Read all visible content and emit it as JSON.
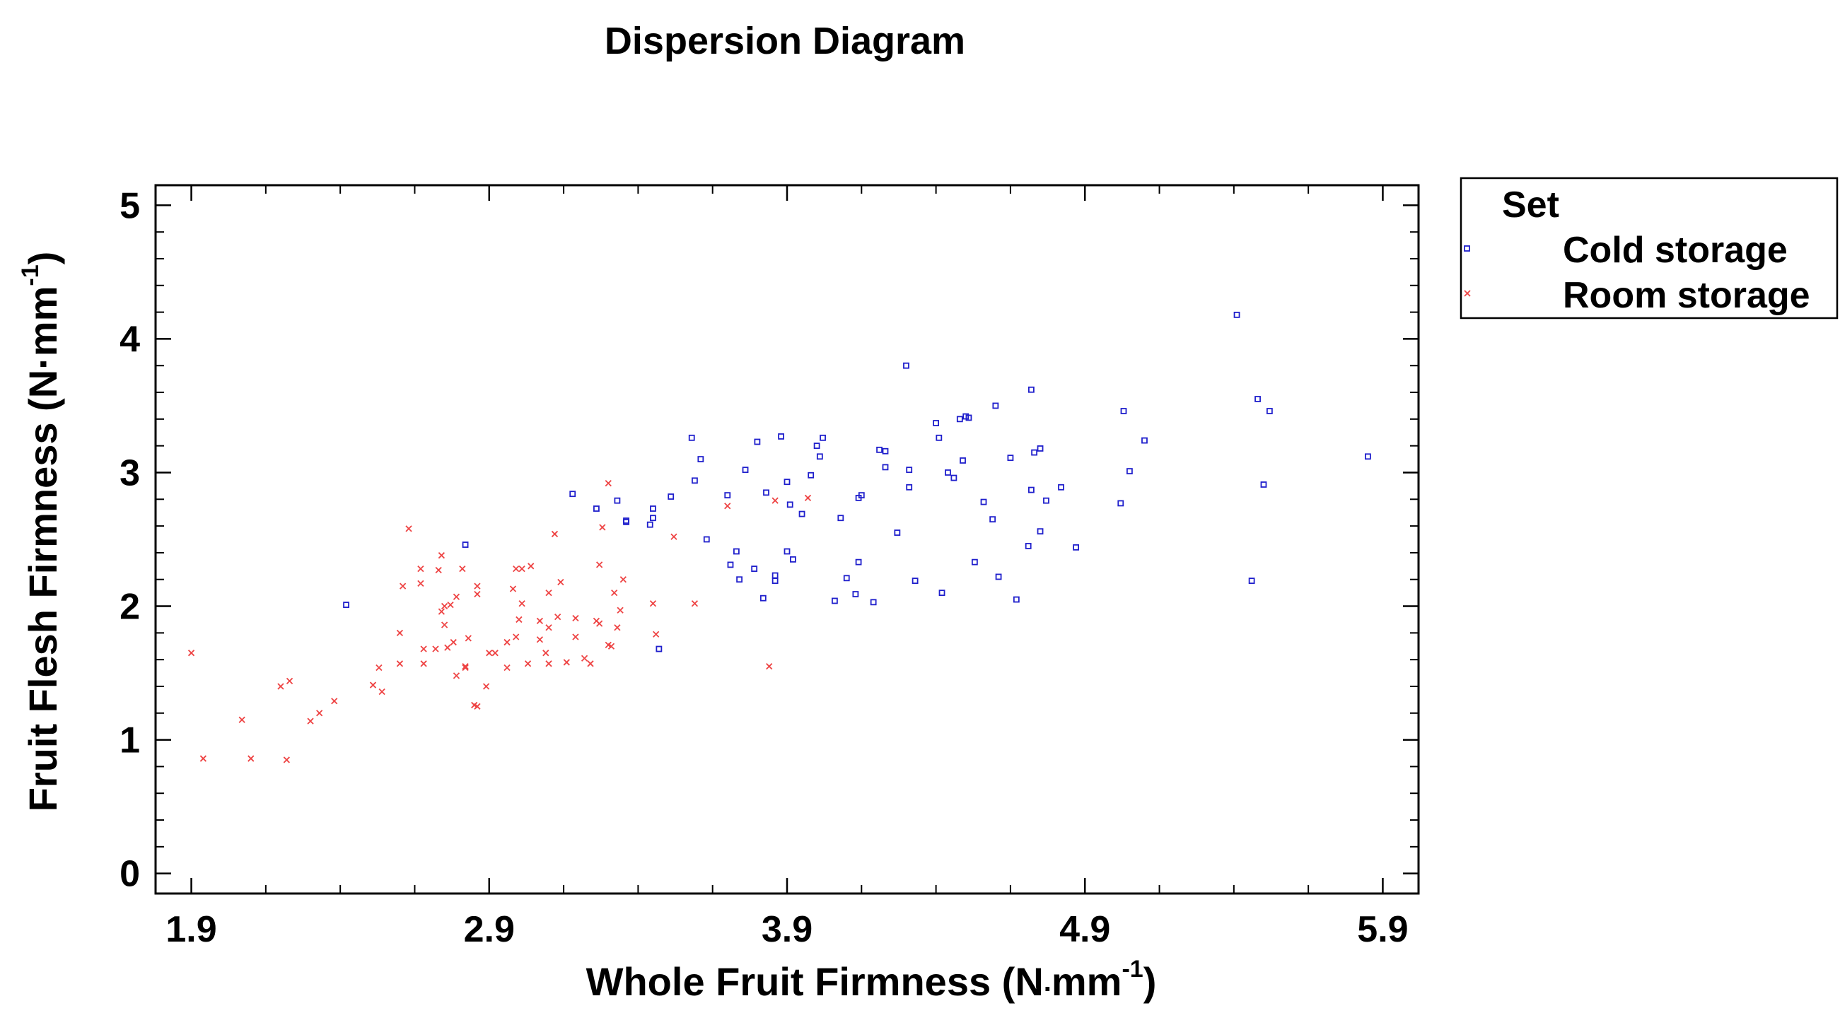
{
  "chart_data": {
    "type": "scatter",
    "title": "Dispersion Diagram",
    "xlabel": "Whole Fruit Firmness (N",
    "xlabel_dot": ".",
    "xlabel_unit": "mm",
    "xlabel_exp": "-1",
    "xlabel_close": ")",
    "ylabel": "Fruit Flesh Firmness (N·mm",
    "ylabel_exp": "-1",
    "ylabel_close": ")",
    "xlim": [
      1.78,
      6.02
    ],
    "ylim": [
      -0.15,
      5.15
    ],
    "x_ticks": [
      "1.9",
      "2.9",
      "3.9",
      "4.9",
      "5.9"
    ],
    "y_ticks": [
      "0",
      "1",
      "2",
      "3",
      "4",
      "5"
    ],
    "grid": false,
    "legend": {
      "title": "Set",
      "placement": "right"
    },
    "series": [
      {
        "name": "Cold storage",
        "marker": "square",
        "color": "#1f1fcc",
        "points": [
          [
            2.42,
            2.01
          ],
          [
            2.82,
            2.46
          ],
          [
            3.18,
            2.84
          ],
          [
            3.26,
            2.73
          ],
          [
            3.33,
            2.79
          ],
          [
            3.36,
            2.64
          ],
          [
            3.45,
            2.66
          ],
          [
            3.45,
            2.73
          ],
          [
            3.44,
            2.61
          ],
          [
            3.36,
            2.63
          ],
          [
            3.47,
            1.68
          ],
          [
            3.51,
            2.82
          ],
          [
            3.58,
            3.26
          ],
          [
            3.59,
            2.94
          ],
          [
            3.61,
            3.1
          ],
          [
            3.63,
            2.5
          ],
          [
            3.7,
            2.83
          ],
          [
            3.71,
            2.31
          ],
          [
            3.73,
            2.41
          ],
          [
            3.74,
            2.2
          ],
          [
            3.76,
            3.02
          ],
          [
            3.79,
            2.28
          ],
          [
            3.8,
            3.23
          ],
          [
            3.82,
            2.06
          ],
          [
            3.83,
            2.85
          ],
          [
            3.88,
            3.27
          ],
          [
            3.86,
            2.19
          ],
          [
            3.86,
            2.23
          ],
          [
            3.9,
            2.41
          ],
          [
            3.9,
            2.93
          ],
          [
            3.92,
            2.35
          ],
          [
            3.91,
            2.76
          ],
          [
            3.95,
            2.69
          ],
          [
            3.98,
            2.98
          ],
          [
            4.0,
            3.2
          ],
          [
            4.01,
            3.12
          ],
          [
            4.02,
            3.26
          ],
          [
            4.06,
            2.04
          ],
          [
            4.08,
            2.66
          ],
          [
            4.1,
            2.21
          ],
          [
            4.13,
            2.09
          ],
          [
            4.14,
            2.33
          ],
          [
            4.14,
            2.81
          ],
          [
            4.15,
            2.83
          ],
          [
            4.19,
            2.03
          ],
          [
            4.21,
            3.17
          ],
          [
            4.23,
            3.16
          ],
          [
            4.23,
            3.04
          ],
          [
            4.27,
            2.55
          ],
          [
            4.3,
            3.8
          ],
          [
            4.31,
            3.02
          ],
          [
            4.31,
            2.89
          ],
          [
            4.33,
            2.19
          ],
          [
            4.4,
            3.37
          ],
          [
            4.41,
            3.26
          ],
          [
            4.42,
            2.1
          ],
          [
            4.44,
            3.0
          ],
          [
            4.46,
            2.96
          ],
          [
            4.48,
            3.4
          ],
          [
            4.49,
            3.09
          ],
          [
            4.5,
            3.42
          ],
          [
            4.51,
            3.41
          ],
          [
            4.53,
            2.33
          ],
          [
            4.56,
            2.78
          ],
          [
            4.59,
            2.65
          ],
          [
            4.6,
            3.5
          ],
          [
            4.61,
            2.22
          ],
          [
            4.65,
            3.11
          ],
          [
            4.67,
            2.05
          ],
          [
            4.71,
            2.45
          ],
          [
            4.72,
            2.87
          ],
          [
            4.72,
            3.62
          ],
          [
            4.73,
            3.15
          ],
          [
            4.75,
            3.18
          ],
          [
            4.75,
            2.56
          ],
          [
            4.77,
            2.79
          ],
          [
            4.82,
            2.89
          ],
          [
            4.87,
            2.44
          ],
          [
            5.02,
            2.77
          ],
          [
            5.03,
            3.46
          ],
          [
            5.05,
            3.01
          ],
          [
            5.1,
            3.24
          ],
          [
            5.41,
            4.18
          ],
          [
            5.46,
            2.19
          ],
          [
            5.48,
            3.55
          ],
          [
            5.5,
            2.91
          ],
          [
            5.52,
            3.46
          ],
          [
            5.85,
            3.12
          ]
        ]
      },
      {
        "name": "Room storage",
        "marker": "cross",
        "color": "#ee4444",
        "points": [
          [
            1.9,
            1.65
          ],
          [
            1.94,
            0.86
          ],
          [
            2.07,
            1.15
          ],
          [
            2.1,
            0.86
          ],
          [
            2.2,
            1.4
          ],
          [
            2.22,
            0.85
          ],
          [
            2.23,
            1.44
          ],
          [
            2.3,
            1.14
          ],
          [
            2.33,
            1.2
          ],
          [
            2.38,
            1.29
          ],
          [
            2.51,
            1.41
          ],
          [
            2.53,
            1.54
          ],
          [
            2.54,
            1.36
          ],
          [
            2.6,
            1.57
          ],
          [
            2.6,
            1.8
          ],
          [
            2.61,
            2.15
          ],
          [
            2.63,
            2.58
          ],
          [
            2.67,
            2.17
          ],
          [
            2.67,
            2.28
          ],
          [
            2.68,
            1.57
          ],
          [
            2.68,
            1.68
          ],
          [
            2.72,
            1.68
          ],
          [
            2.73,
            2.27
          ],
          [
            2.74,
            2.38
          ],
          [
            2.74,
            1.96
          ],
          [
            2.75,
            2.0
          ],
          [
            2.75,
            1.86
          ],
          [
            2.77,
            2.01
          ],
          [
            2.76,
            1.69
          ],
          [
            2.78,
            1.73
          ],
          [
            2.79,
            2.07
          ],
          [
            2.79,
            1.48
          ],
          [
            2.81,
            2.28
          ],
          [
            2.82,
            1.55
          ],
          [
            2.82,
            1.54
          ],
          [
            2.83,
            1.76
          ],
          [
            2.85,
            1.26
          ],
          [
            2.86,
            1.25
          ],
          [
            2.86,
            2.09
          ],
          [
            2.86,
            2.15
          ],
          [
            2.89,
            1.4
          ],
          [
            2.9,
            1.65
          ],
          [
            2.92,
            1.65
          ],
          [
            2.96,
            1.73
          ],
          [
            2.96,
            1.54
          ],
          [
            2.98,
            2.13
          ],
          [
            2.99,
            2.28
          ],
          [
            2.99,
            1.77
          ],
          [
            3.0,
            1.9
          ],
          [
            3.01,
            2.28
          ],
          [
            3.01,
            2.02
          ],
          [
            3.03,
            1.57
          ],
          [
            3.04,
            2.3
          ],
          [
            3.07,
            1.75
          ],
          [
            3.07,
            1.89
          ],
          [
            3.09,
            1.65
          ],
          [
            3.1,
            1.57
          ],
          [
            3.1,
            2.1
          ],
          [
            3.1,
            1.84
          ],
          [
            3.12,
            2.54
          ],
          [
            3.13,
            1.92
          ],
          [
            3.14,
            2.18
          ],
          [
            3.16,
            1.58
          ],
          [
            3.19,
            1.91
          ],
          [
            3.19,
            1.77
          ],
          [
            3.22,
            1.61
          ],
          [
            3.24,
            1.57
          ],
          [
            3.26,
            1.89
          ],
          [
            3.27,
            1.87
          ],
          [
            3.27,
            2.31
          ],
          [
            3.28,
            2.59
          ],
          [
            3.3,
            1.71
          ],
          [
            3.3,
            2.92
          ],
          [
            3.31,
            1.7
          ],
          [
            3.32,
            2.1
          ],
          [
            3.33,
            1.84
          ],
          [
            3.34,
            1.97
          ],
          [
            3.35,
            2.2
          ],
          [
            3.46,
            1.79
          ],
          [
            3.45,
            2.02
          ],
          [
            3.52,
            2.52
          ],
          [
            3.59,
            2.02
          ],
          [
            3.7,
            2.75
          ],
          [
            3.84,
            1.55
          ],
          [
            3.86,
            2.79
          ],
          [
            3.97,
            2.81
          ]
        ]
      }
    ]
  }
}
